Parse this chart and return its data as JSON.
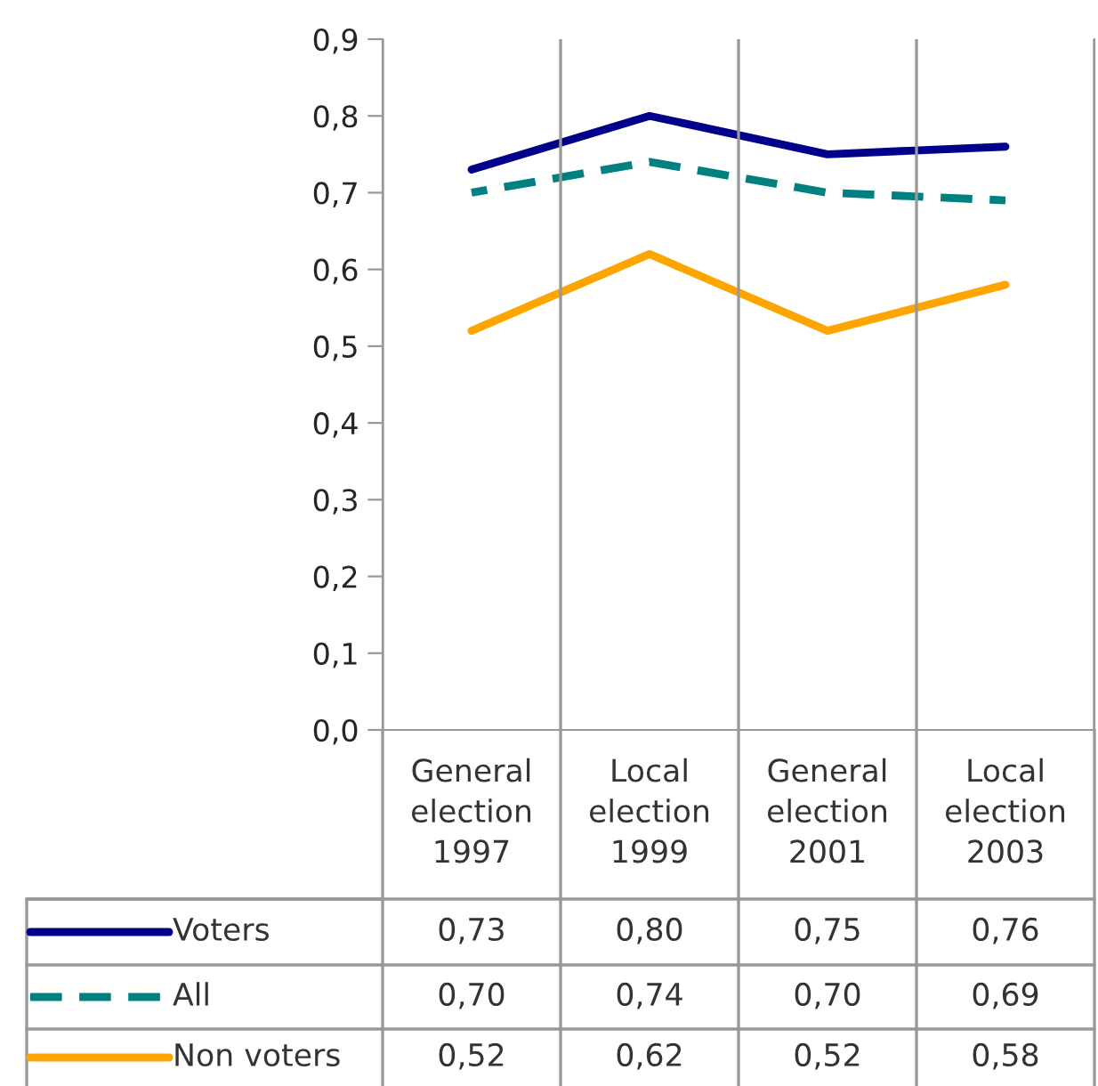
{
  "chart_data": {
    "type": "line",
    "categories": [
      "General\nelection\n1997",
      "Local\nelection\n1999",
      "General\nelection\n2001",
      "Local\nelection\n2003"
    ],
    "series": [
      {
        "name": "Voters",
        "color": "#00008b",
        "line_style": "solid",
        "values": [
          0.73,
          0.8,
          0.75,
          0.76
        ],
        "value_labels": [
          "0,73",
          "0,80",
          "0,75",
          "0,76"
        ]
      },
      {
        "name": "All",
        "color": "#008080",
        "line_style": "dashed",
        "values": [
          0.7,
          0.74,
          0.7,
          0.69
        ],
        "value_labels": [
          "0,70",
          "0,74",
          "0,70",
          "0,69"
        ]
      },
      {
        "name": "Non voters",
        "color": "#ffa500",
        "line_style": "solid",
        "values": [
          0.52,
          0.62,
          0.52,
          0.58
        ],
        "value_labels": [
          "0,52",
          "0,62",
          "0,52",
          "0,58"
        ]
      }
    ],
    "ylim": [
      0,
      0.9
    ],
    "yticks": [
      {
        "value": 0,
        "label": "0,0"
      },
      {
        "value": 0.1,
        "label": "0,1"
      },
      {
        "value": 0.2,
        "label": "0,2"
      },
      {
        "value": 0.3,
        "label": "0,3"
      },
      {
        "value": 0.4,
        "label": "0,4"
      },
      {
        "value": 0.5,
        "label": "0,5"
      },
      {
        "value": 0.6,
        "label": "0,6"
      },
      {
        "value": 0.7,
        "label": "0,7"
      },
      {
        "value": 0.8,
        "label": "0,8"
      },
      {
        "value": 0.9,
        "label": "0,9"
      }
    ],
    "grid": "x",
    "legend": "bottom",
    "marker": "none"
  }
}
